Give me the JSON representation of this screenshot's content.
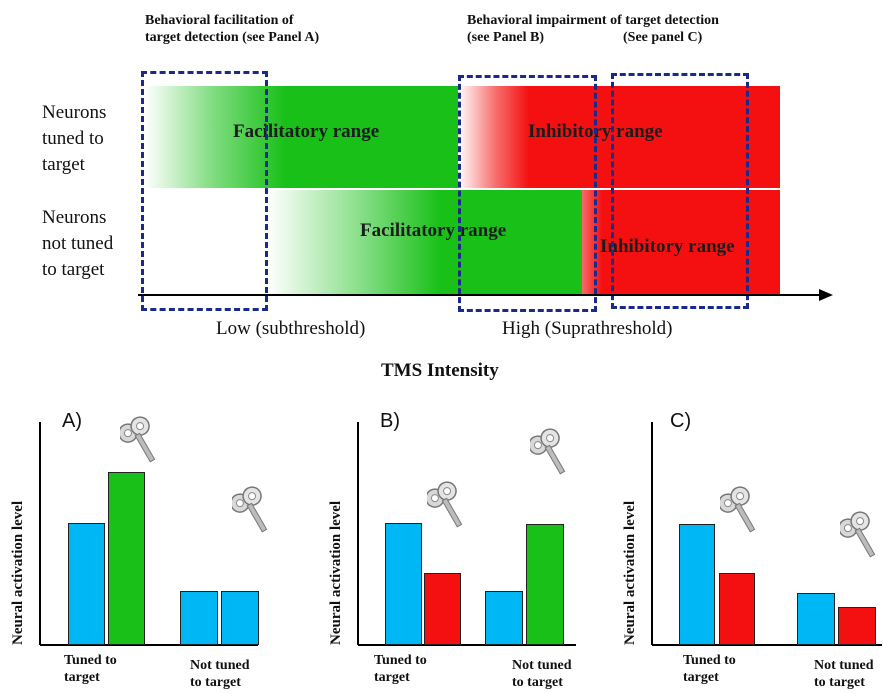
{
  "headers": {
    "facilitation": [
      "Behavioral facilitation of",
      "target detection (see Panel A)"
    ],
    "impairment": "Behavioral impairment of target detection",
    "see_b": "(see Panel B)",
    "see_c": "(See panel C)"
  },
  "rows": {
    "tuned": [
      "Neurons",
      "tuned to",
      "target"
    ],
    "not_tuned": [
      "Neurons",
      "not tuned",
      "to target"
    ]
  },
  "ranges": {
    "tuned_facilitatory": "Facilitatory range",
    "tuned_inhibitory": "Inhibitory range",
    "not_tuned_facilitatory": "Facilitatory range",
    "not_tuned_inhibitory": "Inhibitory range"
  },
  "axis": {
    "low": "Low (subthreshold)",
    "high": "High (Suprathreshold)",
    "title": "TMS Intensity"
  },
  "colors": {
    "blue": "#00b7f5",
    "green": "#18c018",
    "red": "#f41010",
    "dash": "#1a2a8a"
  },
  "panels": [
    {
      "label": "A)",
      "ylabel": "Neural activation level",
      "group1": [
        "Tuned to",
        "target"
      ],
      "group2": [
        "Not tuned",
        "to target"
      ],
      "bars": [
        {
          "color": "blue",
          "value": 0.68
        },
        {
          "color": "green",
          "value": 0.96
        },
        {
          "color": "blue",
          "value": 0.3
        },
        {
          "color": "blue",
          "value": 0.3
        }
      ]
    },
    {
      "label": "B)",
      "ylabel": "Neural activation level",
      "group1": [
        "Tuned to",
        "target"
      ],
      "group2": [
        "Not tuned",
        "to target"
      ],
      "bars": [
        {
          "color": "blue",
          "value": 0.68
        },
        {
          "color": "red",
          "value": 0.4
        },
        {
          "color": "blue",
          "value": 0.3
        },
        {
          "color": "green",
          "value": 0.67
        }
      ]
    },
    {
      "label": "C)",
      "ylabel": "Neural activation level",
      "group1": [
        "Tuned to",
        "target"
      ],
      "group2": [
        "Not tuned",
        "to target"
      ],
      "bars": [
        {
          "color": "blue",
          "value": 0.67
        },
        {
          "color": "red",
          "value": 0.4
        },
        {
          "color": "blue",
          "value": 0.29
        },
        {
          "color": "red",
          "value": 0.21
        }
      ]
    }
  ]
}
